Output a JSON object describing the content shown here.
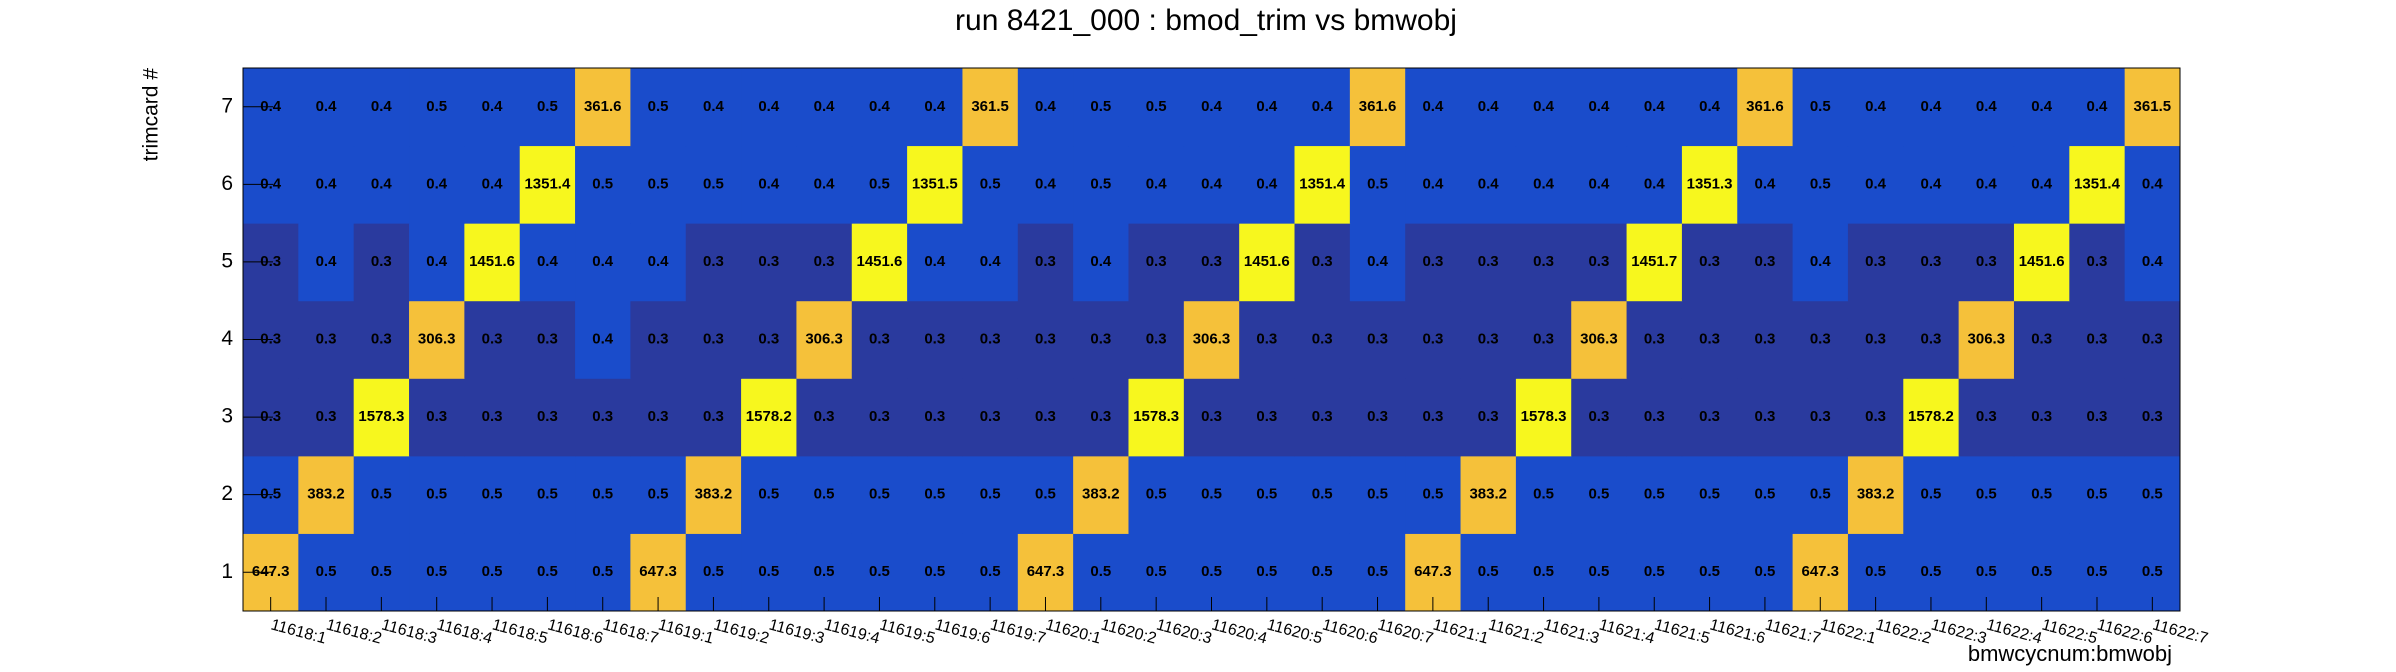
{
  "chart_data": {
    "type": "heatmap",
    "title": "run 8421_000 : bmod_trim vs bmwobj",
    "x_label": "bmwcycnum:bmwobj",
    "y_label": "trimcard #",
    "x_categories": [
      "11618:1",
      "11618:2",
      "11618:3",
      "11618:4",
      "11618:5",
      "11618:6",
      "11618:7",
      "11619:1",
      "11619:2",
      "11619:3",
      "11619:4",
      "11619:5",
      "11619:6",
      "11619:7",
      "11620:1",
      "11620:2",
      "11620:3",
      "11620:4",
      "11620:5",
      "11620:6",
      "11620:7",
      "11621:1",
      "11621:2",
      "11621:3",
      "11621:4",
      "11621:5",
      "11621:6",
      "11621:7",
      "11622:1",
      "11622:2",
      "11622:3",
      "11622:4",
      "11622:5",
      "11622:6",
      "11622:7"
    ],
    "y_categories": [
      "1",
      "2",
      "3",
      "4",
      "5",
      "6",
      "7"
    ],
    "values": [
      [
        647.3,
        0.5,
        0.5,
        0.5,
        0.5,
        0.5,
        0.5,
        647.3,
        0.5,
        0.5,
        0.5,
        0.5,
        0.5,
        0.5,
        647.3,
        0.5,
        0.5,
        0.5,
        0.5,
        0.5,
        0.5,
        647.3,
        0.5,
        0.5,
        0.5,
        0.5,
        0.5,
        0.5,
        647.3,
        0.5,
        0.5,
        0.5,
        0.5,
        0.5,
        0.5
      ],
      [
        0.5,
        383.2,
        0.5,
        0.5,
        0.5,
        0.5,
        0.5,
        0.5,
        383.2,
        0.5,
        0.5,
        0.5,
        0.5,
        0.5,
        0.5,
        383.2,
        0.5,
        0.5,
        0.5,
        0.5,
        0.5,
        0.5,
        383.2,
        0.5,
        0.5,
        0.5,
        0.5,
        0.5,
        0.5,
        383.2,
        0.5,
        0.5,
        0.5,
        0.5,
        0.5
      ],
      [
        0.3,
        0.3,
        1578.3,
        0.3,
        0.3,
        0.3,
        0.3,
        0.3,
        0.3,
        1578.2,
        0.3,
        0.3,
        0.3,
        0.3,
        0.3,
        0.3,
        1578.3,
        0.3,
        0.3,
        0.3,
        0.3,
        0.3,
        0.3,
        1578.3,
        0.3,
        0.3,
        0.3,
        0.3,
        0.3,
        0.3,
        1578.2,
        0.3,
        0.3,
        0.3,
        0.3
      ],
      [
        0.3,
        0.3,
        0.3,
        306.3,
        0.3,
        0.3,
        0.4,
        0.3,
        0.3,
        0.3,
        306.3,
        0.3,
        0.3,
        0.3,
        0.3,
        0.3,
        0.3,
        306.3,
        0.3,
        0.3,
        0.3,
        0.3,
        0.3,
        0.3,
        306.3,
        0.3,
        0.3,
        0.3,
        0.3,
        0.3,
        0.3,
        306.3,
        0.3,
        0.3,
        0.3
      ],
      [
        0.3,
        0.4,
        0.3,
        0.4,
        1451.6,
        0.4,
        0.4,
        0.4,
        0.3,
        0.3,
        0.3,
        1451.6,
        0.4,
        0.4,
        0.3,
        0.4,
        0.3,
        0.3,
        1451.6,
        0.3,
        0.4,
        0.3,
        0.3,
        0.3,
        0.3,
        1451.7,
        0.3,
        0.3,
        0.4,
        0.3,
        0.3,
        0.3,
        1451.6,
        0.3,
        0.4
      ],
      [
        0.4,
        0.4,
        0.4,
        0.4,
        0.4,
        1351.4,
        0.5,
        0.5,
        0.5,
        0.4,
        0.4,
        0.5,
        1351.5,
        0.5,
        0.4,
        0.5,
        0.4,
        0.4,
        0.4,
        1351.4,
        0.5,
        0.4,
        0.4,
        0.4,
        0.4,
        0.4,
        1351.3,
        0.4,
        0.5,
        0.4,
        0.4,
        0.4,
        0.4,
        1351.4,
        0.4
      ],
      [
        0.4,
        0.4,
        0.4,
        0.5,
        0.4,
        0.5,
        361.6,
        0.5,
        0.4,
        0.4,
        0.4,
        0.4,
        0.4,
        361.5,
        0.4,
        0.5,
        0.5,
        0.4,
        0.4,
        0.4,
        361.6,
        0.4,
        0.4,
        0.4,
        0.4,
        0.4,
        0.4,
        361.6,
        0.5,
        0.4,
        0.4,
        0.4,
        0.4,
        0.4,
        361.5
      ]
    ]
  }
}
